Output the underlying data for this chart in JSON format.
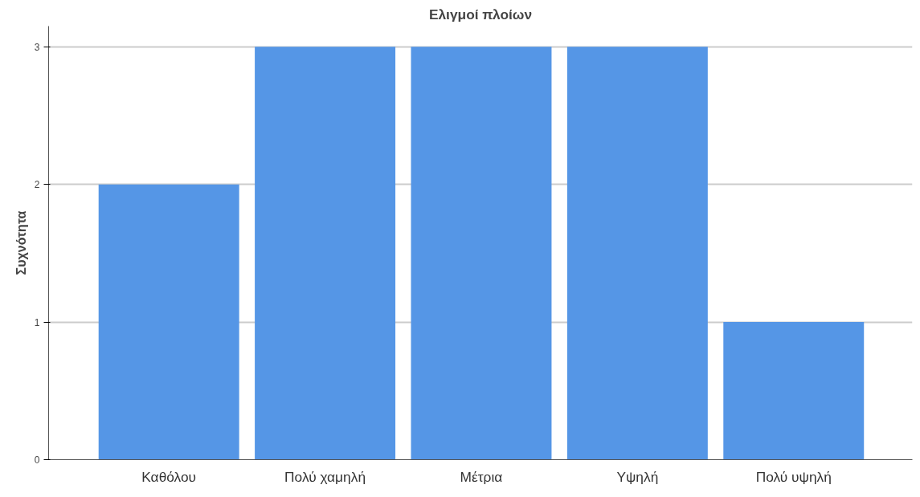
{
  "chart_data": {
    "type": "bar",
    "title": "Ελιγμοί πλοίων",
    "ylabel": "Συχνότητα",
    "categories": [
      "Καθόλου",
      "Πολύ χαμηλή",
      "Μέτρια",
      "Υψηλή",
      "Πολύ υψηλή"
    ],
    "values": [
      2,
      3,
      3,
      3,
      1
    ],
    "color": "#5596e6",
    "ylim": [
      0,
      3.15
    ],
    "yticks": [
      0,
      1,
      2,
      3
    ],
    "grid": "y"
  }
}
